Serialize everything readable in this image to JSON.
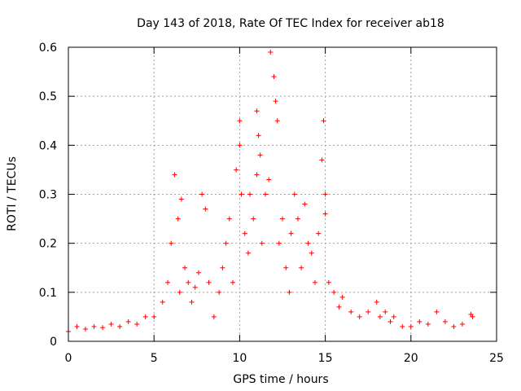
{
  "chart_data": {
    "type": "scatter",
    "title": "Day 143 of 2018, Rate Of TEC Index for receiver ab18",
    "xlabel": "GPS time / hours",
    "ylabel": "ROTI / TECUs",
    "xlim": [
      0,
      25
    ],
    "ylim": [
      0,
      0.6
    ],
    "xticks": [
      0,
      5,
      10,
      15,
      20,
      25
    ],
    "yticks": [
      0,
      0.1,
      0.2,
      0.3,
      0.4,
      0.5,
      0.6
    ],
    "xtick_labels": [
      "0",
      "5",
      "10",
      "15",
      "20",
      "25"
    ],
    "ytick_labels": [
      "0",
      "0.1",
      "0.2",
      "0.3",
      "0.4",
      "0.5",
      "0.6"
    ],
    "grid": true,
    "marker": "+",
    "color": "#ff0000",
    "series": [
      {
        "name": "ROTI",
        "x": [
          0.0,
          0.5,
          1.0,
          1.5,
          2.0,
          2.5,
          3.0,
          3.5,
          4.0,
          4.5,
          5.0,
          5.5,
          5.8,
          6.0,
          6.2,
          6.4,
          6.5,
          6.6,
          6.8,
          7.0,
          7.2,
          7.4,
          7.6,
          7.8,
          8.0,
          8.2,
          8.5,
          8.8,
          9.0,
          9.2,
          9.4,
          9.6,
          9.8,
          10.0,
          10.0,
          10.1,
          10.3,
          10.5,
          10.6,
          10.8,
          11.0,
          11.0,
          11.1,
          11.2,
          11.3,
          11.5,
          11.7,
          11.8,
          12.0,
          12.1,
          12.2,
          12.3,
          12.5,
          12.7,
          12.9,
          13.0,
          13.2,
          13.4,
          13.6,
          13.8,
          14.0,
          14.2,
          14.4,
          14.6,
          14.8,
          14.9,
          15.0,
          15.0,
          15.2,
          15.5,
          15.8,
          16.0,
          16.5,
          17.0,
          17.5,
          18.0,
          18.2,
          18.5,
          18.8,
          19.0,
          19.5,
          20.0,
          20.5,
          21.0,
          21.5,
          22.0,
          22.5,
          23.0,
          23.5,
          23.6
        ],
        "y": [
          0.02,
          0.03,
          0.025,
          0.03,
          0.028,
          0.035,
          0.03,
          0.04,
          0.035,
          0.05,
          0.05,
          0.08,
          0.12,
          0.2,
          0.34,
          0.25,
          0.1,
          0.29,
          0.15,
          0.12,
          0.08,
          0.11,
          0.14,
          0.3,
          0.27,
          0.12,
          0.05,
          0.1,
          0.15,
          0.2,
          0.25,
          0.12,
          0.35,
          0.45,
          0.4,
          0.3,
          0.22,
          0.18,
          0.3,
          0.25,
          0.34,
          0.47,
          0.42,
          0.38,
          0.2,
          0.3,
          0.33,
          0.59,
          0.54,
          0.49,
          0.45,
          0.2,
          0.25,
          0.15,
          0.1,
          0.22,
          0.3,
          0.25,
          0.15,
          0.28,
          0.2,
          0.18,
          0.12,
          0.22,
          0.37,
          0.45,
          0.3,
          0.26,
          0.12,
          0.1,
          0.07,
          0.09,
          0.06,
          0.05,
          0.06,
          0.08,
          0.05,
          0.06,
          0.04,
          0.05,
          0.03,
          0.03,
          0.04,
          0.035,
          0.06,
          0.04,
          0.03,
          0.035,
          0.055,
          0.05
        ]
      }
    ]
  }
}
